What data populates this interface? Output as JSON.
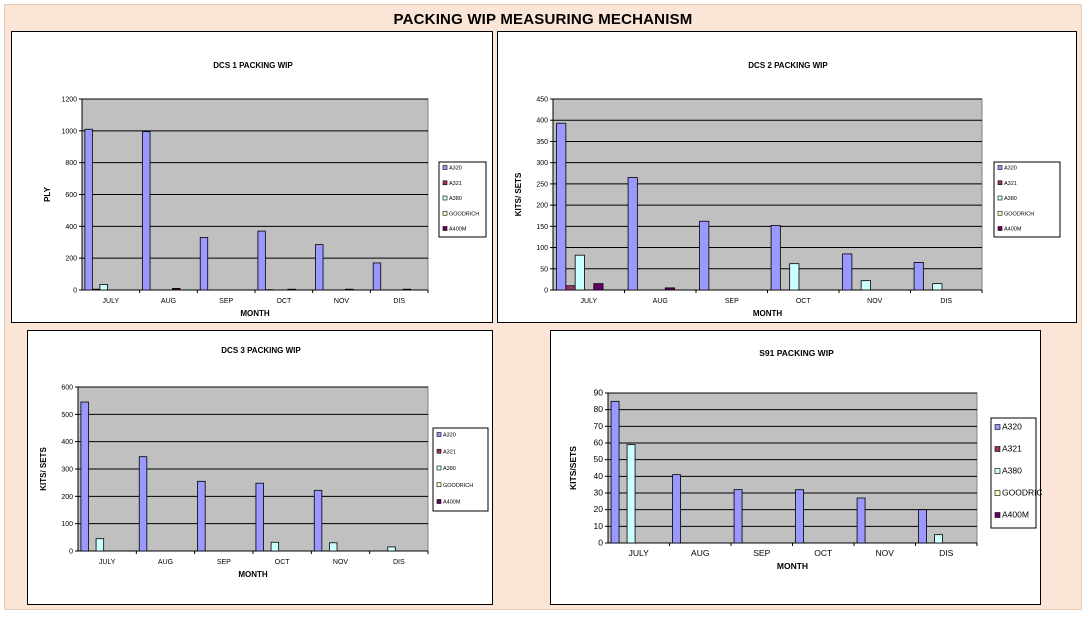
{
  "page_title": "PACKING WIP MEASURING MECHANISM",
  "colors": {
    "A320": "#9999ff",
    "A321": "#993366",
    "A380": "#ccffff",
    "GOODRICH": "#ffffcc",
    "A400M": "#660066",
    "plot_bg": "#c0c0c0",
    "page_bg": "#fbe5d6"
  },
  "chart_data": [
    {
      "type": "bar",
      "title": "DCS 1 PACKING WIP",
      "xlabel": "MONTH",
      "ylabel": "PLY",
      "ylim": [
        0,
        1200
      ],
      "yticks": [
        0,
        200,
        400,
        600,
        800,
        1000,
        1200
      ],
      "categories": [
        "JULY",
        "AUG",
        "SEP",
        "OCT",
        "NOV",
        "DIS"
      ],
      "grid": true,
      "legend": "right",
      "series": [
        {
          "name": "A320",
          "values": [
            1010,
            995,
            330,
            370,
            285,
            170
          ]
        },
        {
          "name": "A321",
          "values": [
            5,
            0,
            0,
            2,
            0,
            0
          ]
        },
        {
          "name": "A380",
          "values": [
            35,
            0,
            0,
            0,
            0,
            0
          ]
        },
        {
          "name": "GOODRICH",
          "values": [
            0,
            0,
            0,
            0,
            0,
            0
          ]
        },
        {
          "name": "A400M",
          "values": [
            0,
            10,
            0,
            5,
            5,
            5
          ]
        }
      ]
    },
    {
      "type": "bar",
      "title": "DCS 2 PACKING WIP",
      "xlabel": "MONTH",
      "ylabel": "KITS/ SETS",
      "ylim": [
        0,
        450
      ],
      "yticks": [
        0,
        50,
        100,
        150,
        200,
        250,
        300,
        350,
        400,
        450
      ],
      "categories": [
        "JULY",
        "AUG",
        "SEP",
        "OCT",
        "NOV",
        "DIS"
      ],
      "grid": true,
      "legend": "right",
      "series": [
        {
          "name": "A320",
          "values": [
            393,
            265,
            162,
            152,
            85,
            65
          ]
        },
        {
          "name": "A321",
          "values": [
            10,
            0,
            0,
            0,
            0,
            0
          ]
        },
        {
          "name": "A380",
          "values": [
            82,
            0,
            0,
            62,
            22,
            15
          ]
        },
        {
          "name": "GOODRICH",
          "values": [
            0,
            0,
            0,
            0,
            0,
            0
          ]
        },
        {
          "name": "A400M",
          "values": [
            15,
            5,
            0,
            0,
            0,
            0
          ]
        }
      ]
    },
    {
      "type": "bar",
      "title": "DCS 3 PACKING WIP",
      "xlabel": "MONTH",
      "ylabel": "KITS/ SETS",
      "ylim": [
        0,
        600
      ],
      "yticks": [
        0,
        100,
        200,
        300,
        400,
        500,
        600
      ],
      "categories": [
        "JULY",
        "AUG",
        "SEP",
        "OCT",
        "NOV",
        "DIS"
      ],
      "grid": true,
      "legend": "right",
      "series": [
        {
          "name": "A320",
          "values": [
            545,
            345,
            255,
            248,
            222,
            0
          ]
        },
        {
          "name": "A321",
          "values": [
            0,
            0,
            0,
            0,
            0,
            0
          ]
        },
        {
          "name": "A380",
          "values": [
            45,
            0,
            0,
            32,
            30,
            15
          ]
        },
        {
          "name": "GOODRICH",
          "values": [
            0,
            0,
            0,
            0,
            0,
            0
          ]
        },
        {
          "name": "A400M",
          "values": [
            0,
            0,
            0,
            0,
            0,
            0
          ]
        }
      ]
    },
    {
      "type": "bar",
      "title": "S91 PACKING WIP",
      "xlabel": "MONTH",
      "ylabel": "KITS/SETS",
      "ylim": [
        0,
        90
      ],
      "yticks": [
        0,
        10,
        20,
        30,
        40,
        50,
        60,
        70,
        80,
        90
      ],
      "categories": [
        "JULY",
        "AUG",
        "SEP",
        "OCT",
        "NOV",
        "DIS"
      ],
      "grid": true,
      "legend": "right",
      "series": [
        {
          "name": "A320",
          "values": [
            85,
            41,
            32,
            32,
            27,
            20
          ]
        },
        {
          "name": "A321",
          "values": [
            0,
            0,
            0,
            0,
            0,
            0
          ]
        },
        {
          "name": "A380",
          "values": [
            59,
            0,
            0,
            0,
            0,
            5
          ]
        },
        {
          "name": "GOODRICH",
          "values": [
            0,
            0,
            0,
            0,
            0,
            0
          ]
        },
        {
          "name": "A400M",
          "values": [
            0,
            0,
            0,
            0,
            0,
            0
          ]
        }
      ]
    }
  ]
}
